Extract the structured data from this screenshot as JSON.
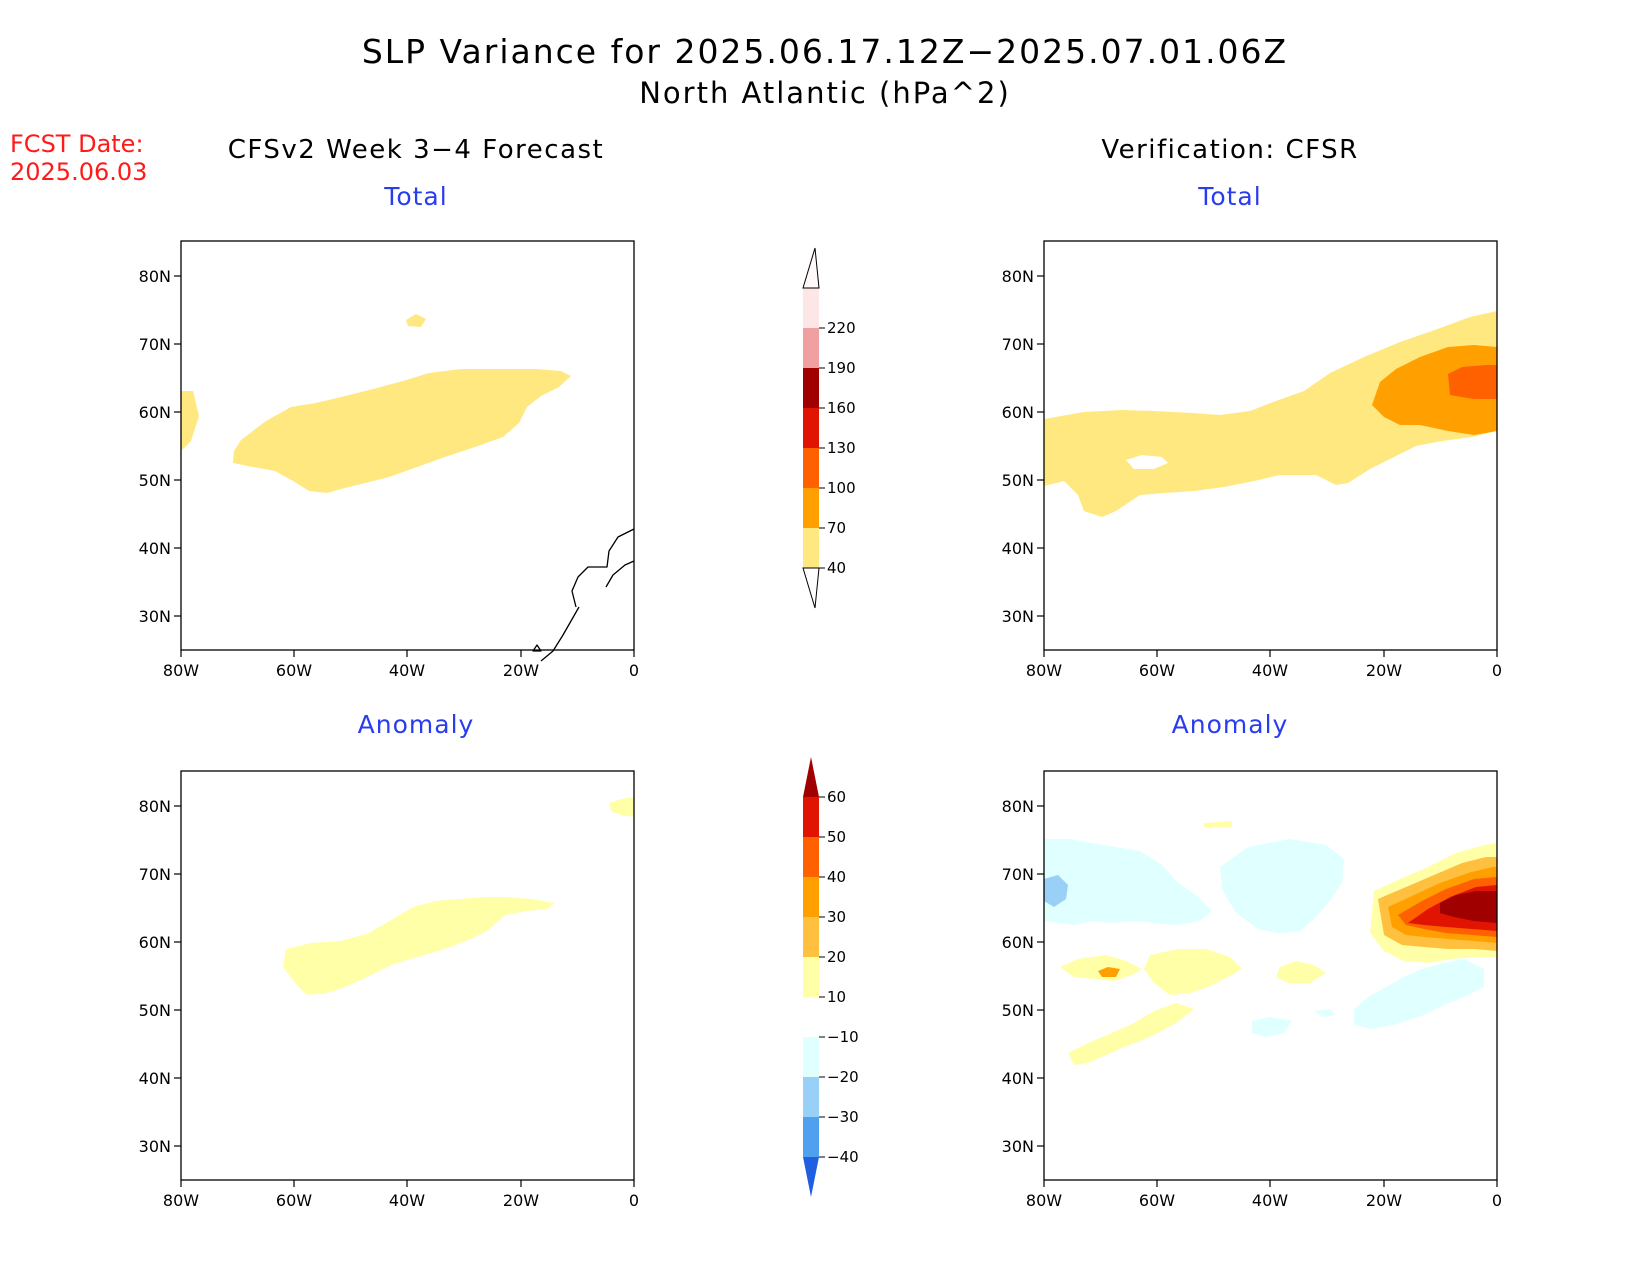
{
  "title": "SLP Variance for 2025.06.17.12Z−2025.07.01.06Z",
  "subtitle": "North Atlantic (hPa^2)",
  "fcst": {
    "label": "FCST Date:",
    "date": "2025.06.03"
  },
  "left_column_title": "CFSv2 Week 3−4 Forecast",
  "right_column_title": "Verification: CFSR",
  "panels": {
    "forecast_total": {
      "label": "Total"
    },
    "forecast_anomaly": {
      "label": "Anomaly"
    },
    "verification_total": {
      "label": "Total"
    },
    "verification_anomaly": {
      "label": "Anomaly"
    }
  },
  "axes": {
    "lat_ticks": [
      "80N",
      "70N",
      "60N",
      "50N",
      "40N",
      "30N"
    ],
    "lon_ticks": [
      "80W",
      "60W",
      "40W",
      "20W",
      "0"
    ]
  },
  "colorbars": {
    "total": {
      "levels": [
        "40",
        "70",
        "100",
        "130",
        "160",
        "190",
        "220"
      ],
      "colors": [
        "#ffe880",
        "#ffa000",
        "#ff6000",
        "#e01400",
        "#a00000",
        "#f0a0a0",
        "#fce6e6"
      ]
    },
    "anomaly": {
      "levels": [
        "60",
        "50",
        "40",
        "30",
        "20",
        "10",
        "−10",
        "−20",
        "−30",
        "−40"
      ],
      "colors_top_to_bottom": [
        "#a00000",
        "#e01400",
        "#ff6000",
        "#ffa000",
        "#ffc040",
        "#ffffa8",
        "#ffffff",
        "#e0ffff",
        "#98d0f8",
        "#50a0f0",
        "#2060e0"
      ]
    }
  }
}
